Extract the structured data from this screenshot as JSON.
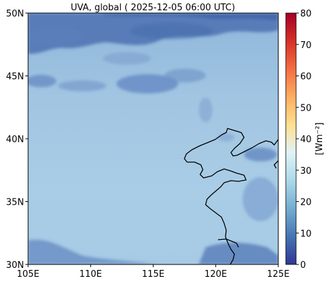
{
  "title": "UVA, global ( 2025-12-05 06:00 UTC)",
  "map": {
    "lon_range": [
      105,
      125
    ],
    "lat_range": [
      30,
      50
    ],
    "lon_ticks": [
      {
        "value": 105,
        "label": "105E"
      },
      {
        "value": 110,
        "label": "110E"
      },
      {
        "value": 115,
        "label": "115E"
      },
      {
        "value": 120,
        "label": "120E"
      },
      {
        "value": 125,
        "label": "125E"
      }
    ],
    "lat_ticks": [
      {
        "value": 30,
        "label": "30N"
      },
      {
        "value": 35,
        "label": "35N"
      },
      {
        "value": 40,
        "label": "40N"
      },
      {
        "value": 45,
        "label": "45N"
      },
      {
        "value": 50,
        "label": "50N"
      }
    ],
    "coastline_color": "#000000"
  },
  "colorbar": {
    "label": "[Wm⁻²]",
    "range": [
      0,
      80
    ],
    "ticks": [
      0,
      10,
      20,
      30,
      40,
      50,
      60,
      70,
      80
    ],
    "colormap": [
      "#313695",
      "#4575b4",
      "#74add1",
      "#abd9e9",
      "#e0f3f8",
      "#fee090",
      "#fdae61",
      "#f46d43",
      "#d73027",
      "#a50026"
    ]
  }
}
